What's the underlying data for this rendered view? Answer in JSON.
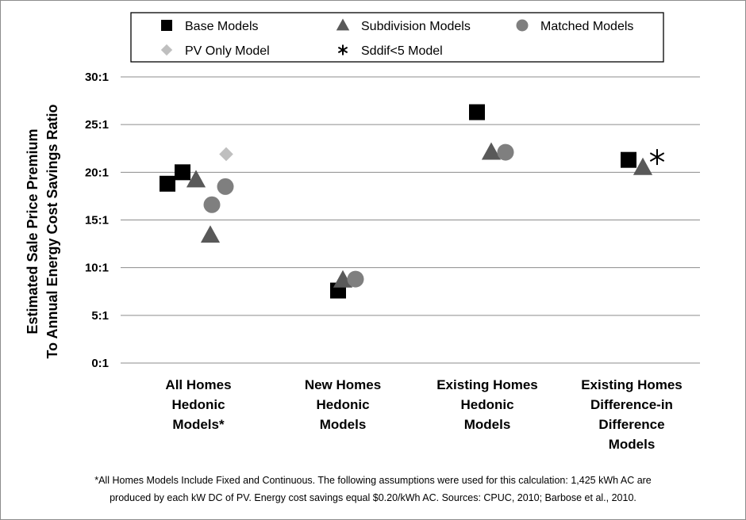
{
  "chart_data": {
    "type": "scatter",
    "ylabel_lines": [
      "Estimated Sale Price Premium",
      "To Annual Energy Cost Savings Ratio"
    ],
    "y_ticks": [
      "0:1",
      "5:1",
      "10:1",
      "15:1",
      "20:1",
      "25:1",
      "30:1"
    ],
    "ylim": [
      0,
      30
    ],
    "grid": true,
    "legend_position": "top",
    "categories": [
      {
        "lines": [
          "All Homes",
          "Hedonic",
          "Models*"
        ]
      },
      {
        "lines": [
          "New Homes",
          "Hedonic",
          "Models"
        ]
      },
      {
        "lines": [
          "Existing Homes",
          "Hedonic",
          "Models"
        ]
      },
      {
        "lines": [
          "Existing Homes",
          "Difference-in",
          "Difference",
          "Models"
        ]
      }
    ],
    "series": [
      {
        "name": "Base Models",
        "marker": "square",
        "color": "#000000",
        "points": [
          {
            "category": 0,
            "y": 18.8
          },
          {
            "category": 0,
            "y": 20.0
          },
          {
            "category": 1,
            "y": 7.6
          },
          {
            "category": 2,
            "y": 26.3
          },
          {
            "category": 3,
            "y": 21.3
          }
        ]
      },
      {
        "name": "Subdivision Models",
        "marker": "triangle",
        "color": "#595959",
        "points": [
          {
            "category": 0,
            "y": 19.2
          },
          {
            "category": 0,
            "y": 13.4
          },
          {
            "category": 1,
            "y": 8.7
          },
          {
            "category": 2,
            "y": 22.1
          },
          {
            "category": 3,
            "y": 20.5
          }
        ]
      },
      {
        "name": "Matched  Models",
        "marker": "circle",
        "color": "#7f7f7f",
        "points": [
          {
            "category": 0,
            "y": 16.6
          },
          {
            "category": 0,
            "y": 18.5
          },
          {
            "category": 1,
            "y": 8.8
          },
          {
            "category": 2,
            "y": 22.1
          }
        ]
      },
      {
        "name": "PV Only Model",
        "marker": "diamond",
        "color": "#bfbfbf",
        "points": [
          {
            "category": 0,
            "y": 21.9
          }
        ]
      },
      {
        "name": "Sddif<5 Model",
        "marker": "asterisk",
        "color": "#000000",
        "points": [
          {
            "category": 3,
            "y": 21.6
          }
        ]
      }
    ]
  },
  "footnote": {
    "line1": "*All Homes Models Include Fixed and Continuous. The following assumptions were used for this calculation: 1,425 kWh AC are",
    "line2": "produced by each kW DC of PV.  Energy cost savings equal $0.20/kWh AC.  Sources: CPUC, 2010; Barbose et al., 2010."
  }
}
